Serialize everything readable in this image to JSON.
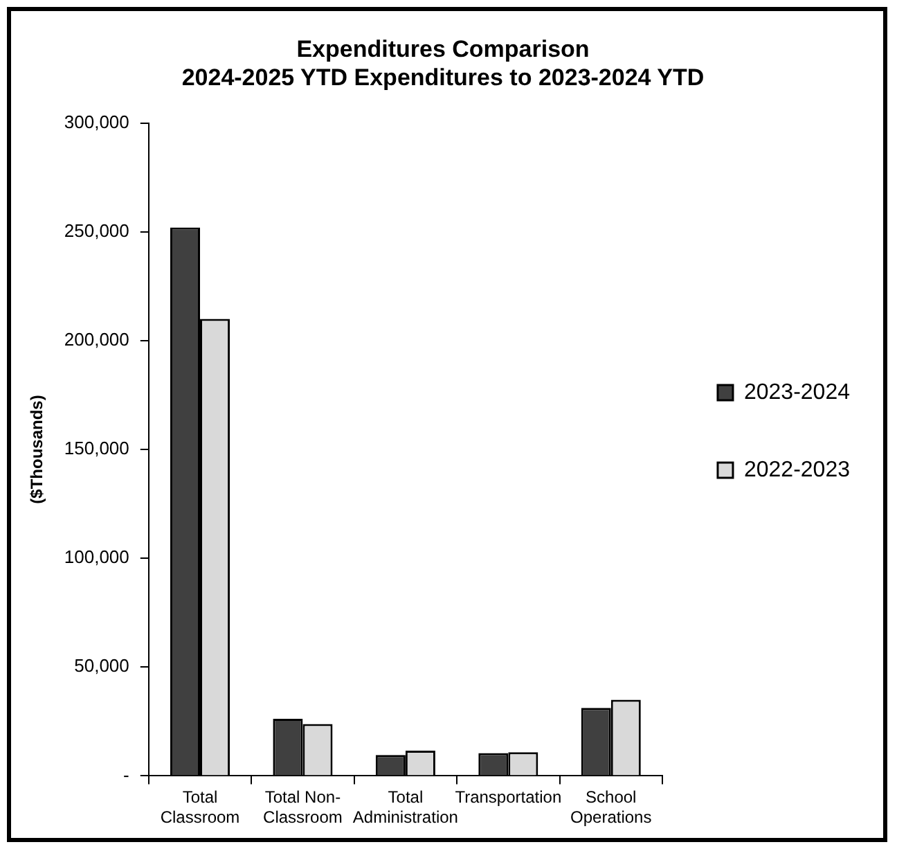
{
  "chart_data": {
    "type": "bar",
    "title": "Expenditures Comparison\n2024-2025 YTD Expenditures to 2023-2024 YTD",
    "ylabel": "($Thousands)",
    "categories": [
      "Total Classroom",
      "Total Non-Classroom",
      "Total Administration",
      "Transportation",
      "School Operations"
    ],
    "series": [
      {
        "name": "2023-2024",
        "color": "#404040",
        "values": [
          252000,
          26200,
          9600,
          10500,
          31200
        ]
      },
      {
        "name": "2022-2023",
        "color": "#d9d9d9",
        "values": [
          210000,
          23800,
          11600,
          10900,
          35000
        ]
      }
    ],
    "ylim": [
      0,
      300000
    ],
    "yticks": [
      {
        "value": 0,
        "label": "-"
      },
      {
        "value": 50000,
        "label": "50,000"
      },
      {
        "value": 100000,
        "label": "100,000"
      },
      {
        "value": 150000,
        "label": "150,000"
      },
      {
        "value": 200000,
        "label": "200,000"
      },
      {
        "value": 250000,
        "label": "250,000"
      },
      {
        "value": 300000,
        "label": "300,000"
      }
    ],
    "grid": false,
    "legend": "right"
  }
}
